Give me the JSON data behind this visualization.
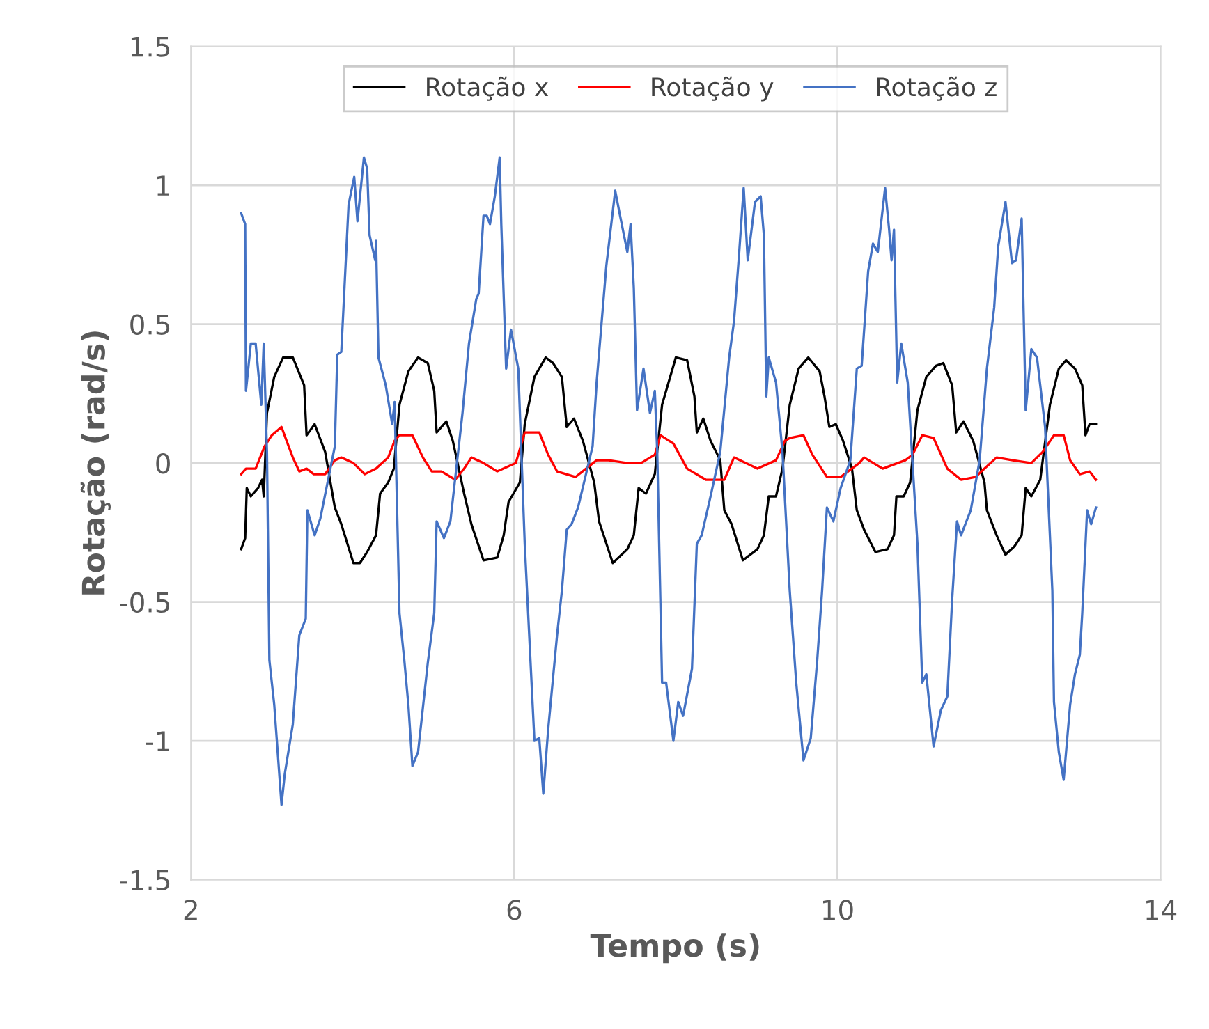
{
  "chart_data": {
    "type": "line",
    "xlabel": "Tempo (s)",
    "ylabel": "Rotação (rad/s)",
    "xlim": [
      2,
      14
    ],
    "xticks": [
      2,
      6,
      10,
      14
    ],
    "ylim": [
      -1.5,
      1.5
    ],
    "yticks": [
      -1.5,
      -1,
      -0.5,
      0,
      0.5,
      1,
      1.5
    ],
    "grid": true,
    "legend": "top",
    "marker": "none",
    "line_style": "solid",
    "series": [
      {
        "name": "Rotação x",
        "color": "#000000",
        "x": [
          2.62,
          2.67,
          2.69,
          2.74,
          2.83,
          2.88,
          2.9,
          2.94,
          3.03,
          3.14,
          3.26,
          3.4,
          3.43,
          3.53,
          3.66,
          3.78,
          3.86,
          4.01,
          4.09,
          4.18,
          4.29,
          4.34,
          4.44,
          4.51,
          4.58,
          4.69,
          4.81,
          4.93,
          5.01,
          5.04,
          5.16,
          5.24,
          5.38,
          5.47,
          5.62,
          5.79,
          5.87,
          5.93,
          6.07,
          6.13,
          6.25,
          6.39,
          6.48,
          6.59,
          6.65,
          6.74,
          6.85,
          6.99,
          7.05,
          7.22,
          7.4,
          7.48,
          7.54,
          7.63,
          7.74,
          7.83,
          8.0,
          8.14,
          8.23,
          8.26,
          8.34,
          8.43,
          8.55,
          8.6,
          8.69,
          8.83,
          9.01,
          9.09,
          9.15,
          9.24,
          9.32,
          9.41,
          9.52,
          9.64,
          9.78,
          9.84,
          9.9,
          9.98,
          10.07,
          10.18,
          10.24,
          10.33,
          10.47,
          10.62,
          10.7,
          10.73,
          10.82,
          10.9,
          10.99,
          11.1,
          11.22,
          11.31,
          11.42,
          11.47,
          11.56,
          11.68,
          11.82,
          11.85,
          11.97,
          12.08,
          12.19,
          12.28,
          12.33,
          12.4,
          12.51,
          12.63,
          12.74,
          12.83,
          12.94,
          13.03,
          13.07,
          13.12,
          13.2
        ],
        "values": [
          -0.31,
          -0.27,
          -0.09,
          -0.12,
          -0.09,
          -0.06,
          -0.12,
          0.18,
          0.31,
          0.38,
          0.38,
          0.28,
          0.1,
          0.14,
          0.04,
          -0.16,
          -0.22,
          -0.36,
          -0.36,
          -0.32,
          -0.26,
          -0.11,
          -0.07,
          -0.02,
          0.21,
          0.33,
          0.38,
          0.36,
          0.26,
          0.11,
          0.15,
          0.08,
          -0.11,
          -0.22,
          -0.35,
          -0.34,
          -0.26,
          -0.14,
          -0.07,
          0.14,
          0.31,
          0.38,
          0.36,
          0.31,
          0.13,
          0.16,
          0.08,
          -0.07,
          -0.21,
          -0.36,
          -0.31,
          -0.26,
          -0.09,
          -0.11,
          -0.04,
          0.21,
          0.38,
          0.37,
          0.24,
          0.11,
          0.16,
          0.08,
          0.01,
          -0.17,
          -0.22,
          -0.35,
          -0.31,
          -0.26,
          -0.12,
          -0.12,
          -0.02,
          0.21,
          0.34,
          0.38,
          0.33,
          0.24,
          0.13,
          0.14,
          0.08,
          -0.02,
          -0.17,
          -0.24,
          -0.32,
          -0.31,
          -0.26,
          -0.12,
          -0.12,
          -0.07,
          0.19,
          0.31,
          0.35,
          0.36,
          0.28,
          0.11,
          0.15,
          0.08,
          -0.07,
          -0.17,
          -0.26,
          -0.33,
          -0.3,
          -0.26,
          -0.09,
          -0.12,
          -0.06,
          0.21,
          0.34,
          0.37,
          0.34,
          0.28,
          0.1,
          0.14,
          0.14
        ]
      },
      {
        "name": "Rotação y",
        "color": "#ff0000",
        "x": [
          2.62,
          2.68,
          2.8,
          2.91,
          3.0,
          3.12,
          3.17,
          3.26,
          3.34,
          3.43,
          3.52,
          3.66,
          3.78,
          3.86,
          4.01,
          4.15,
          4.29,
          4.44,
          4.52,
          4.58,
          4.74,
          4.87,
          4.98,
          5.1,
          5.27,
          5.38,
          5.47,
          5.62,
          5.79,
          6.02,
          6.13,
          6.31,
          6.42,
          6.53,
          6.76,
          7.02,
          7.17,
          7.4,
          7.57,
          7.74,
          7.81,
          7.97,
          8.14,
          8.37,
          8.6,
          8.72,
          9.01,
          9.24,
          9.35,
          9.41,
          9.58,
          9.69,
          9.87,
          10.04,
          10.27,
          10.33,
          10.56,
          10.84,
          10.93,
          11.05,
          11.19,
          11.36,
          11.53,
          11.71,
          11.82,
          11.97,
          12.17,
          12.4,
          12.54,
          12.68,
          12.8,
          12.88,
          13.0,
          13.12,
          13.2
        ],
        "values": [
          -0.04,
          -0.02,
          -0.02,
          0.06,
          0.1,
          0.13,
          0.09,
          0.02,
          -0.03,
          -0.02,
          -0.04,
          -0.04,
          0.01,
          0.02,
          0.0,
          -0.04,
          -0.02,
          0.02,
          0.08,
          0.1,
          0.1,
          0.02,
          -0.03,
          -0.03,
          -0.06,
          -0.02,
          0.02,
          0.0,
          -0.03,
          0.0,
          0.11,
          0.11,
          0.03,
          -0.03,
          -0.05,
          0.01,
          0.01,
          0.0,
          0.0,
          0.03,
          0.1,
          0.07,
          -0.02,
          -0.06,
          -0.06,
          0.02,
          -0.02,
          0.01,
          0.08,
          0.09,
          0.1,
          0.03,
          -0.05,
          -0.05,
          0.0,
          0.02,
          -0.02,
          0.01,
          0.03,
          0.1,
          0.09,
          -0.02,
          -0.06,
          -0.05,
          -0.02,
          0.02,
          0.01,
          0.0,
          0.04,
          0.1,
          0.1,
          0.01,
          -0.04,
          -0.03,
          -0.06
        ]
      },
      {
        "name": "Rotação z",
        "color": "#4472c4",
        "x": [
          2.62,
          2.67,
          2.68,
          2.74,
          2.8,
          2.87,
          2.9,
          2.94,
          2.97,
          3.03,
          3.12,
          3.16,
          3.26,
          3.34,
          3.42,
          3.44,
          3.53,
          3.6,
          3.78,
          3.81,
          3.86,
          3.95,
          4.02,
          4.06,
          4.14,
          4.18,
          4.21,
          4.28,
          4.29,
          4.32,
          4.41,
          4.49,
          4.52,
          4.58,
          4.64,
          4.69,
          4.74,
          4.81,
          4.93,
          5.01,
          5.04,
          5.13,
          5.21,
          5.36,
          5.44,
          5.53,
          5.56,
          5.62,
          5.66,
          5.7,
          5.76,
          5.82,
          5.84,
          5.9,
          5.96,
          6.05,
          6.13,
          6.25,
          6.31,
          6.36,
          6.42,
          6.53,
          6.59,
          6.65,
          6.71,
          6.79,
          6.97,
          7.02,
          7.14,
          7.25,
          7.31,
          7.4,
          7.44,
          7.48,
          7.52,
          7.6,
          7.68,
          7.74,
          7.77,
          7.83,
          7.88,
          7.97,
          8.03,
          8.09,
          8.2,
          8.26,
          8.32,
          8.43,
          8.55,
          8.66,
          8.72,
          8.78,
          8.84,
          8.89,
          8.98,
          9.05,
          9.09,
          9.12,
          9.15,
          9.24,
          9.32,
          9.41,
          9.49,
          9.58,
          9.67,
          9.75,
          9.81,
          9.87,
          9.95,
          10.04,
          10.16,
          10.24,
          10.3,
          10.38,
          10.44,
          10.5,
          10.59,
          10.64,
          10.67,
          10.7,
          10.74,
          10.79,
          10.87,
          10.99,
          11.05,
          11.1,
          11.19,
          11.28,
          11.36,
          11.42,
          11.48,
          11.53,
          11.65,
          11.76,
          11.85,
          11.94,
          11.99,
          12.08,
          12.16,
          12.21,
          12.28,
          12.33,
          12.4,
          12.47,
          12.57,
          12.66,
          12.68,
          12.74,
          12.8,
          12.88,
          12.94,
          13.0,
          13.03,
          13.09,
          13.14,
          13.2
        ],
        "values": [
          0.9,
          0.86,
          0.26,
          0.43,
          0.43,
          0.21,
          0.43,
          0.04,
          -0.71,
          -0.87,
          -1.23,
          -1.12,
          -0.94,
          -0.62,
          -0.56,
          -0.17,
          -0.26,
          -0.2,
          0.06,
          0.39,
          0.4,
          0.93,
          1.03,
          0.87,
          1.1,
          1.06,
          0.82,
          0.73,
          0.8,
          0.38,
          0.28,
          0.14,
          0.22,
          -0.54,
          -0.71,
          -0.87,
          -1.09,
          -1.04,
          -0.72,
          -0.54,
          -0.21,
          -0.27,
          -0.21,
          0.18,
          0.43,
          0.59,
          0.61,
          0.89,
          0.89,
          0.86,
          0.96,
          1.1,
          0.86,
          0.34,
          0.48,
          0.34,
          -0.29,
          -1.0,
          -0.99,
          -1.19,
          -0.96,
          -0.62,
          -0.46,
          -0.24,
          -0.22,
          -0.16,
          0.06,
          0.29,
          0.71,
          0.98,
          0.89,
          0.76,
          0.86,
          0.63,
          0.19,
          0.34,
          0.18,
          0.26,
          0.04,
          -0.79,
          -0.79,
          -1.0,
          -0.86,
          -0.91,
          -0.74,
          -0.29,
          -0.26,
          -0.12,
          0.04,
          0.38,
          0.51,
          0.74,
          0.99,
          0.73,
          0.94,
          0.96,
          0.82,
          0.24,
          0.38,
          0.29,
          0.04,
          -0.46,
          -0.79,
          -1.07,
          -0.99,
          -0.71,
          -0.46,
          -0.16,
          -0.21,
          -0.09,
          0.01,
          0.34,
          0.35,
          0.69,
          0.79,
          0.76,
          0.99,
          0.84,
          0.73,
          0.84,
          0.29,
          0.43,
          0.29,
          -0.29,
          -0.79,
          -0.76,
          -1.02,
          -0.89,
          -0.84,
          -0.49,
          -0.21,
          -0.26,
          -0.17,
          0.01,
          0.34,
          0.56,
          0.78,
          0.94,
          0.72,
          0.73,
          0.88,
          0.19,
          0.41,
          0.38,
          0.13,
          -0.46,
          -0.86,
          -1.04,
          -1.14,
          -0.87,
          -0.76,
          -0.69,
          -0.54,
          -0.17,
          -0.22,
          -0.16
        ]
      }
    ]
  }
}
